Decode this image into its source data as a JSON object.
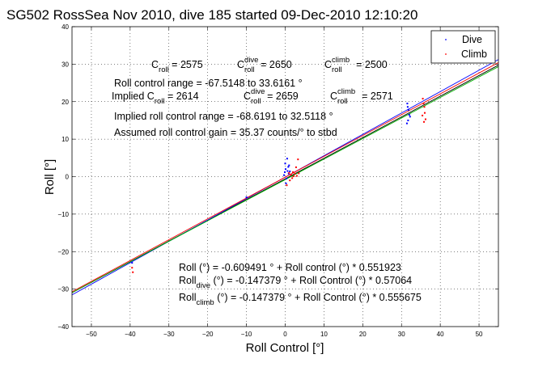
{
  "chart_data": {
    "type": "scatter",
    "title": "SG502 RossSea Nov 2010, dive 185 started 09-Dec-2010 12:10:20",
    "xlabel": "Roll Control [°]",
    "ylabel": "Roll [°]",
    "xlim": [
      -55,
      55
    ],
    "ylim": [
      -40,
      40
    ],
    "xticks": [
      -50,
      -40,
      -30,
      -20,
      -10,
      0,
      10,
      20,
      30,
      40,
      50
    ],
    "yticks": [
      -40,
      -30,
      -20,
      -10,
      0,
      10,
      20,
      30,
      40
    ],
    "grid": true,
    "legend_placement": "top-right",
    "legend": [
      {
        "label": "Dive",
        "color": "#0000ff"
      },
      {
        "label": "Climb",
        "color": "#ff0000"
      }
    ],
    "series": [
      {
        "name": "Dive",
        "color": "#0000ff",
        "points": [
          [
            31.5,
            19.5
          ],
          [
            31.6,
            18.6
          ],
          [
            31.8,
            17.8
          ],
          [
            32.0,
            16.5
          ],
          [
            31.7,
            15.0
          ],
          [
            31.4,
            14.2
          ],
          [
            32.2,
            16.0
          ],
          [
            0.0,
            3.5
          ],
          [
            0.1,
            2.0
          ],
          [
            -0.1,
            1.2
          ],
          [
            0.3,
            -0.5
          ],
          [
            0.5,
            4.8
          ],
          [
            0.8,
            2.6
          ],
          [
            -0.3,
            0.4
          ],
          [
            0.6,
            1.5
          ],
          [
            0.2,
            -1.8
          ],
          [
            0.9,
            0.8
          ],
          [
            1.2,
            1.4
          ],
          [
            1.0,
            3.0
          ],
          [
            -39.5,
            -23.0
          ],
          [
            -10.0,
            -5.5
          ]
        ]
      },
      {
        "name": "Climb",
        "color": "#ff0000",
        "points": [
          [
            35.5,
            20.8
          ],
          [
            35.7,
            19.5
          ],
          [
            35.9,
            18.6
          ],
          [
            36.0,
            17.0
          ],
          [
            35.4,
            16.3
          ],
          [
            35.8,
            14.6
          ],
          [
            36.2,
            15.3
          ],
          [
            1.0,
            1.0
          ],
          [
            1.5,
            0.5
          ],
          [
            2.0,
            1.2
          ],
          [
            2.5,
            0.8
          ],
          [
            3.0,
            0.2
          ],
          [
            3.5,
            0.9
          ],
          [
            2.8,
            2.5
          ],
          [
            3.3,
            4.6
          ],
          [
            1.8,
            -0.4
          ],
          [
            0.4,
            -2.3
          ],
          [
            1.2,
            -1.0
          ],
          [
            2.2,
            0.1
          ],
          [
            -39.5,
            -24.3
          ],
          [
            -39.3,
            -25.5
          ]
        ]
      }
    ],
    "fit_lines": [
      {
        "color": "#000000",
        "intercept": -0.609491,
        "slope": 0.551923
      },
      {
        "color": "#0000ff",
        "intercept": -0.147379,
        "slope": 0.57064
      },
      {
        "color": "#ff0000",
        "intercept": -0.147379,
        "slope": 0.555675
      },
      {
        "color": "#00b000",
        "intercept": -0.8,
        "slope": 0.548
      }
    ]
  },
  "annotations": {
    "croll_row": {
      "c": "C",
      "roll": "roll",
      "val": " = 2575",
      "c2": "C",
      "sup2": "dive",
      "sub2": "roll",
      "val2": " = 2650",
      "c3": "C",
      "sup3": "climb",
      "sub3": "roll",
      "val3": " = 2500"
    },
    "range_line": "Roll control range = -67.5148 to 33.6161 °",
    "implied_row": {
      "text": "Implied C",
      "sub": "roll",
      "val": " = 2614",
      "c2": "C",
      "sup2": "dive",
      "sub2": "roll",
      "val2": " = 2659",
      "c3": "C",
      "sup3": "climb",
      "sub3": "roll",
      "val3": " = 2571"
    },
    "implied_range": "Implied roll control range = -68.6191 to 32.5118 °",
    "gain": "Assumed roll control gain = 35.37 counts/° to stbd",
    "eq1": "Roll (°) = -0.609491 ° + Roll control (°) * 0.551923",
    "eq2": {
      "pre": "Roll",
      "sub": "dive",
      "post": " (°) = -0.147379 ° + Roll Control (°) * 0.57064"
    },
    "eq3": {
      "pre": "Roll",
      "sub": "climb",
      "post": " (°) = -0.147379 ° + Roll Control (°) * 0.555675"
    }
  }
}
